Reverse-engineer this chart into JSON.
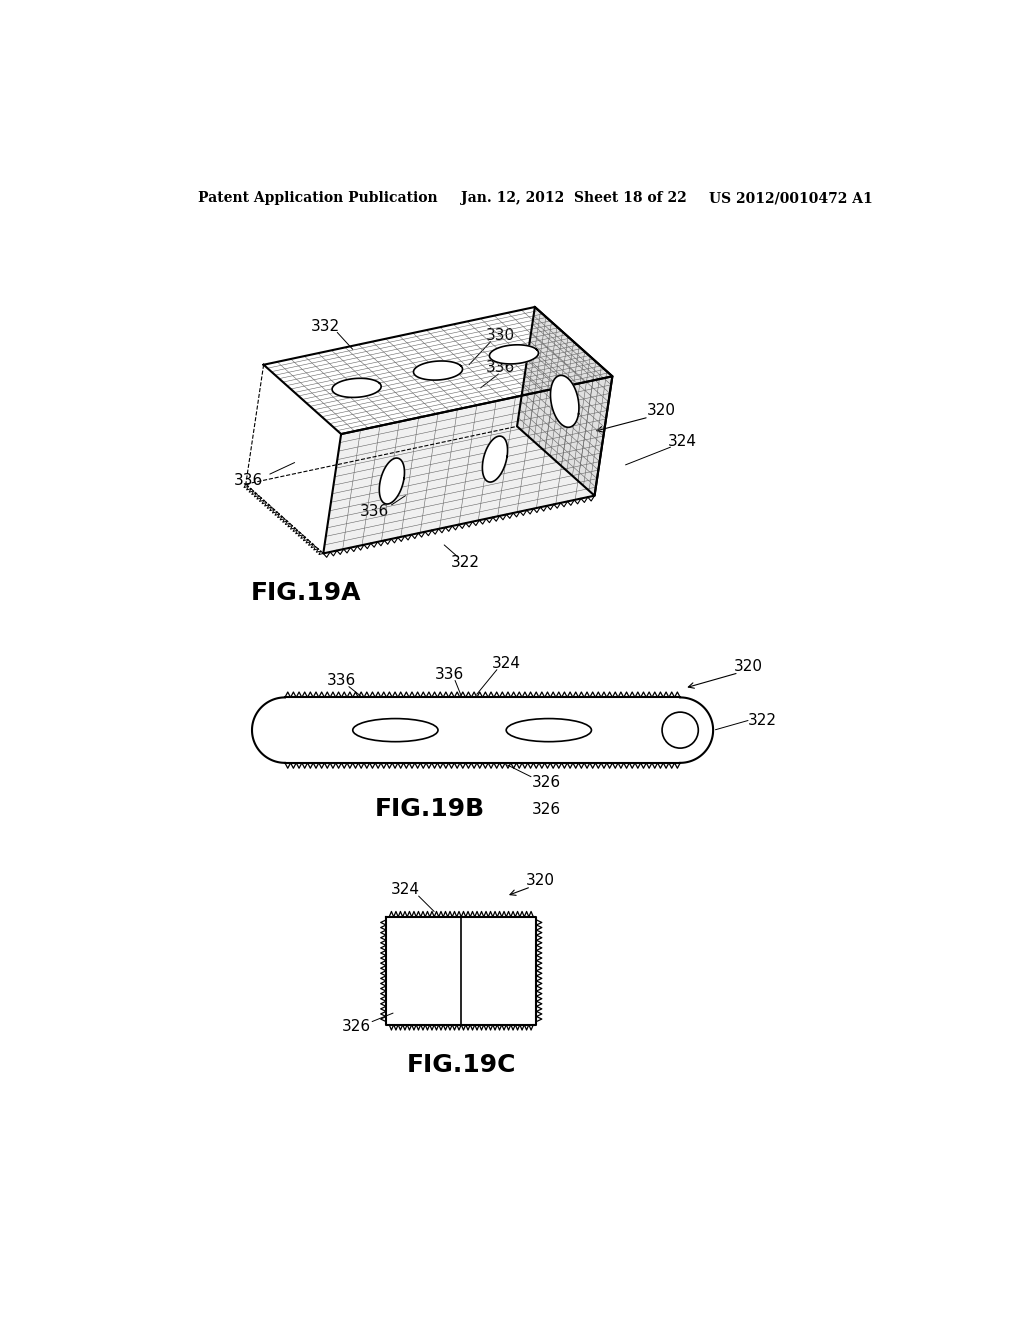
{
  "header_left": "Patent Application Publication",
  "header_center": "Jan. 12, 2012  Sheet 18 of 22",
  "header_right": "US 2012/0010472 A1",
  "fig_labels": [
    "FIG.19A",
    "FIG.19B",
    "FIG.19C"
  ],
  "background_color": "#ffffff",
  "line_color": "#000000",
  "header_fontsize": 10,
  "fig_label_fontsize": 18,
  "ref_fontsize": 11
}
